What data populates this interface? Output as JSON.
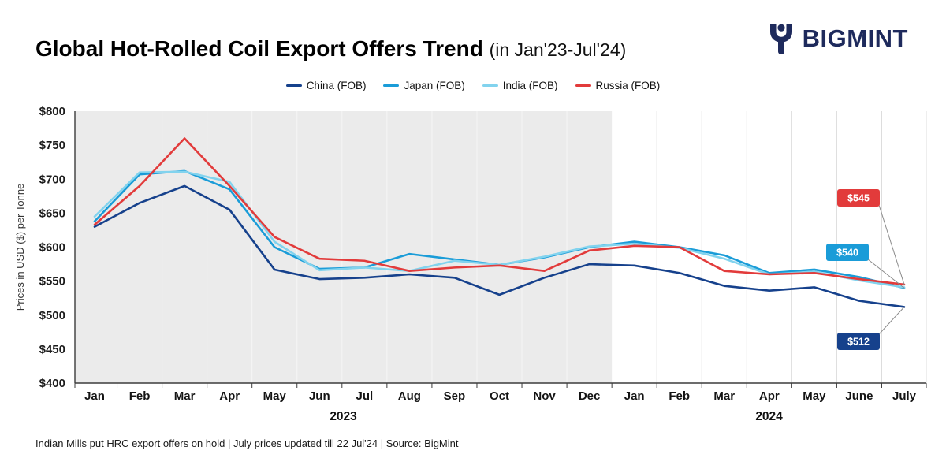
{
  "header": {
    "title": "Global Hot-Rolled Coil Export Offers Trend",
    "subtitle": "(in Jan'23-Jul'24)",
    "brand": "BIGMINT"
  },
  "footer": {
    "note": "Indian Mills put HRC export offers on hold | July prices updated till 22  Jul'24 | Source: BigMint"
  },
  "chart_data": {
    "type": "line",
    "title": "Global Hot-Rolled Coil Export Offers Trend (in Jan'23-Jul'24)",
    "ylabel": "Prices in USD ($) per Tonne",
    "ylim": [
      400,
      800
    ],
    "ytick_step": 50,
    "ytick_prefix": "$",
    "grid": "vertical-2024-only",
    "legend_position": "top",
    "x": [
      "Jan",
      "Feb",
      "Mar",
      "Apr",
      "May",
      "Jun",
      "Jul",
      "Aug",
      "Sep",
      "Oct",
      "Nov",
      "Dec",
      "Jan",
      "Feb",
      "Mar",
      "Apr",
      "May",
      "June",
      "July"
    ],
    "year_groups": [
      {
        "label": "2023",
        "start": 0,
        "end": 11,
        "shaded": true
      },
      {
        "label": "2024",
        "start": 12,
        "end": 18,
        "shaded": false
      }
    ],
    "series": [
      {
        "name": "China (FOB)",
        "color": "#16418c",
        "values": [
          630,
          665,
          690,
          655,
          567,
          553,
          555,
          560,
          555,
          530,
          555,
          575,
          573,
          562,
          543,
          536,
          541,
          521,
          512
        ]
      },
      {
        "name": "Japan (FOB)",
        "color": "#1a9cd8",
        "values": [
          638,
          707,
          712,
          685,
          600,
          568,
          570,
          590,
          582,
          574,
          585,
          600,
          608,
          600,
          588,
          562,
          567,
          556,
          540
        ]
      },
      {
        "name": "India (FOB)",
        "color": "#82d3ee",
        "values": [
          645,
          710,
          711,
          696,
          608,
          566,
          570,
          565,
          580,
          574,
          586,
          601,
          605,
          599,
          583,
          560,
          564,
          551,
          541
        ]
      },
      {
        "name": "Russia (FOB)",
        "color": "#e23b3b",
        "values": [
          633,
          690,
          760,
          690,
          615,
          583,
          580,
          565,
          570,
          573,
          565,
          595,
          602,
          600,
          565,
          560,
          562,
          553,
          545
        ]
      }
    ],
    "annotations": [
      {
        "label": "$545",
        "color": "#e23b3b",
        "series": "Russia (FOB)"
      },
      {
        "label": "$540",
        "color": "#1a9cd8",
        "series": "Japan (FOB)"
      },
      {
        "label": "$512",
        "color": "#16418c",
        "series": "China (FOB)"
      }
    ]
  }
}
